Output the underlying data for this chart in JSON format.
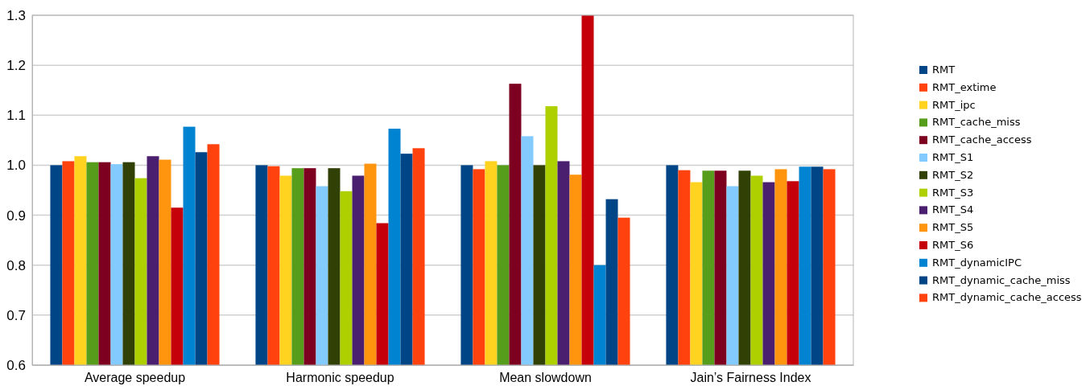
{
  "chart_data": {
    "type": "bar",
    "categories": [
      "Average speedup",
      "Harmonic speedup",
      "Mean slowdown",
      "Jain’s Fairness Index"
    ],
    "ylim": [
      0.6,
      1.3
    ],
    "yticks": [
      0.6,
      0.7,
      0.8,
      0.9,
      {
        "value": 1,
        "label": "1.0"
      },
      1.1,
      1.2,
      1.3
    ],
    "grid": "y",
    "legend": "right",
    "series": [
      {
        "name": "RMT",
        "color": "#004586",
        "values": [
          1.0,
          1.0,
          1.0,
          1.0
        ]
      },
      {
        "name": "RMT_extime",
        "color": "#ff420e",
        "values": [
          1.008,
          0.998,
          0.992,
          0.99
        ]
      },
      {
        "name": "RMT_ipc",
        "color": "#ffd320",
        "values": [
          1.018,
          0.979,
          1.008,
          0.966
        ]
      },
      {
        "name": "RMT_cache_miss",
        "color": "#579d1c",
        "values": [
          1.006,
          0.994,
          1.0,
          0.989
        ]
      },
      {
        "name": "RMT_cache_access",
        "color": "#7e0021",
        "values": [
          1.006,
          0.994,
          1.163,
          0.989
        ]
      },
      {
        "name": "RMT_S1",
        "color": "#83caff",
        "values": [
          1.002,
          0.958,
          1.058,
          0.958
        ]
      },
      {
        "name": "RMT_S2",
        "color": "#314004",
        "values": [
          1.006,
          0.994,
          1.0,
          0.989
        ]
      },
      {
        "name": "RMT_S3",
        "color": "#aecf00",
        "values": [
          0.974,
          0.948,
          1.118,
          0.979
        ]
      },
      {
        "name": "RMT_S4",
        "color": "#4b1f6f",
        "values": [
          1.018,
          0.979,
          1.008,
          0.966
        ]
      },
      {
        "name": "RMT_S5",
        "color": "#ff950e",
        "values": [
          1.011,
          1.003,
          0.981,
          0.992
        ]
      },
      {
        "name": "RMT_S6",
        "color": "#c5000b",
        "values": [
          0.915,
          0.884,
          1.3,
          0.968
        ]
      },
      {
        "name": "RMT_dynamicIPC",
        "color": "#0084d1",
        "values": [
          1.077,
          1.073,
          0.8,
          0.997
        ]
      },
      {
        "name": "RMT_dynamic_cache_miss",
        "color": "#004586",
        "values": [
          1.026,
          1.023,
          0.932,
          0.997
        ]
      },
      {
        "name": "RMT_dynamic_cache_access",
        "color": "#ff420e",
        "values": [
          1.042,
          1.034,
          0.895,
          0.992
        ]
      }
    ]
  }
}
